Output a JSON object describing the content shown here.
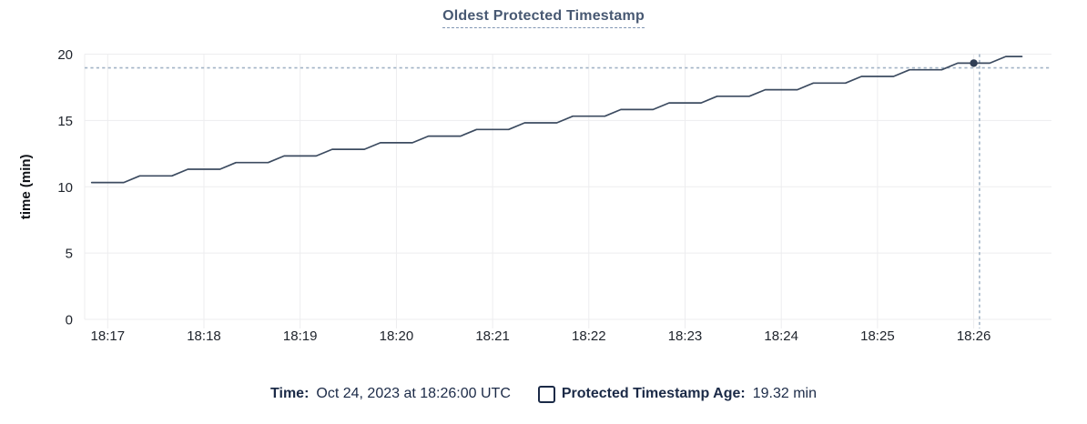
{
  "title": "Oldest Protected Timestamp",
  "colors": {
    "title": "#475872",
    "line": "#3c4b60",
    "dot": "#2f3e55",
    "crosshair": "#a2b4c6",
    "grid": "#ededef",
    "tick_label": "#20252d",
    "axis_title": "#101318",
    "legend_text": "#1b2a47"
  },
  "chart_data": {
    "type": "line",
    "title": "Oldest Protected Timestamp",
    "xlabel": "",
    "ylabel": "time (min)",
    "ylim": [
      0,
      20
    ],
    "y_ticks": [
      0,
      5,
      10,
      15,
      20
    ],
    "x_ticks": [
      "18:17",
      "18:18",
      "18:19",
      "18:20",
      "18:21",
      "18:22",
      "18:23",
      "18:24",
      "18:25",
      "18:26"
    ],
    "x_domain": [
      "18:16:50",
      "18:26:30"
    ],
    "grid": true,
    "legend_position": "bottom",
    "series": [
      {
        "name": "Protected Timestamp Age",
        "points": [
          [
            "18:16:50",
            10.32
          ],
          [
            "18:17:00",
            10.32
          ],
          [
            "18:17:10",
            10.32
          ],
          [
            "18:17:20",
            10.82
          ],
          [
            "18:17:30",
            10.82
          ],
          [
            "18:17:40",
            10.82
          ],
          [
            "18:17:50",
            11.32
          ],
          [
            "18:18:00",
            11.32
          ],
          [
            "18:18:10",
            11.32
          ],
          [
            "18:18:20",
            11.82
          ],
          [
            "18:18:30",
            11.82
          ],
          [
            "18:18:40",
            11.82
          ],
          [
            "18:18:50",
            12.32
          ],
          [
            "18:19:00",
            12.32
          ],
          [
            "18:19:10",
            12.32
          ],
          [
            "18:19:20",
            12.82
          ],
          [
            "18:19:30",
            12.82
          ],
          [
            "18:19:40",
            12.82
          ],
          [
            "18:19:50",
            13.32
          ],
          [
            "18:20:00",
            13.32
          ],
          [
            "18:20:10",
            13.32
          ],
          [
            "18:20:20",
            13.82
          ],
          [
            "18:20:30",
            13.82
          ],
          [
            "18:20:40",
            13.82
          ],
          [
            "18:20:50",
            14.32
          ],
          [
            "18:21:00",
            14.32
          ],
          [
            "18:21:10",
            14.32
          ],
          [
            "18:21:20",
            14.82
          ],
          [
            "18:21:30",
            14.82
          ],
          [
            "18:21:40",
            14.82
          ],
          [
            "18:21:50",
            15.32
          ],
          [
            "18:22:00",
            15.32
          ],
          [
            "18:22:10",
            15.32
          ],
          [
            "18:22:20",
            15.82
          ],
          [
            "18:22:30",
            15.82
          ],
          [
            "18:22:40",
            15.82
          ],
          [
            "18:22:50",
            16.32
          ],
          [
            "18:23:00",
            16.32
          ],
          [
            "18:23:10",
            16.32
          ],
          [
            "18:23:20",
            16.82
          ],
          [
            "18:23:30",
            16.82
          ],
          [
            "18:23:40",
            16.82
          ],
          [
            "18:23:50",
            17.32
          ],
          [
            "18:24:00",
            17.32
          ],
          [
            "18:24:10",
            17.32
          ],
          [
            "18:24:20",
            17.82
          ],
          [
            "18:24:30",
            17.82
          ],
          [
            "18:24:40",
            17.82
          ],
          [
            "18:24:50",
            18.32
          ],
          [
            "18:25:00",
            18.32
          ],
          [
            "18:25:10",
            18.32
          ],
          [
            "18:25:20",
            18.82
          ],
          [
            "18:25:30",
            18.82
          ],
          [
            "18:25:40",
            18.82
          ],
          [
            "18:25:50",
            19.32
          ],
          [
            "18:26:00",
            19.32
          ],
          [
            "18:26:10",
            19.32
          ],
          [
            "18:26:20",
            19.82
          ],
          [
            "18:26:30",
            19.82
          ]
        ]
      }
    ],
    "hover": {
      "point_time": "18:26:00",
      "value": 19.32
    }
  },
  "legend": {
    "time_label": "Time:",
    "time_value": "Oct 24, 2023 at 18:26:00 UTC",
    "checkbox_icon": "checkbox-unchecked",
    "series_label": "Protected Timestamp Age:",
    "series_value": "19.32 min"
  }
}
